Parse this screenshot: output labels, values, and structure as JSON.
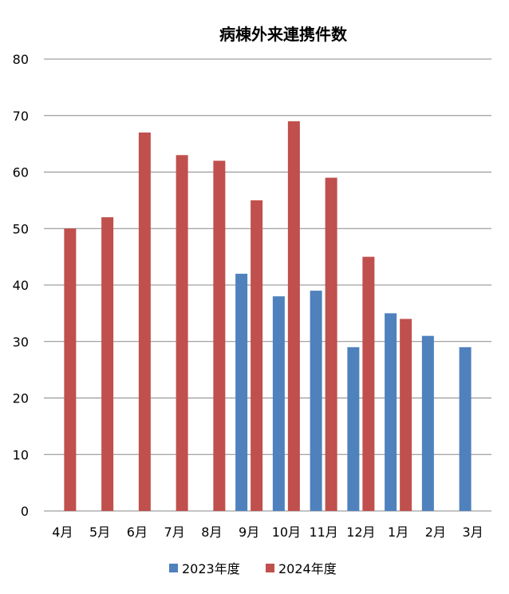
{
  "chart_data": {
    "type": "bar",
    "title": "病棟外来連携件数",
    "xlabel": "",
    "ylabel": "",
    "ylim": [
      0,
      80
    ],
    "yticks": [
      0,
      10,
      20,
      30,
      40,
      50,
      60,
      70,
      80
    ],
    "grid": true,
    "legend_position": "bottom",
    "categories": [
      "4月",
      "5月",
      "6月",
      "7月",
      "8月",
      "9月",
      "10月",
      "11月",
      "12月",
      "1月",
      "2月",
      "3月"
    ],
    "series": [
      {
        "name": "2023年度",
        "color": "#4F81BD",
        "values": [
          null,
          null,
          null,
          null,
          null,
          42,
          38,
          39,
          29,
          35,
          31,
          29
        ]
      },
      {
        "name": "2024年度",
        "color": "#C0504D",
        "values": [
          50,
          52,
          67,
          63,
          62,
          55,
          69,
          59,
          45,
          34,
          null,
          null
        ]
      }
    ]
  }
}
